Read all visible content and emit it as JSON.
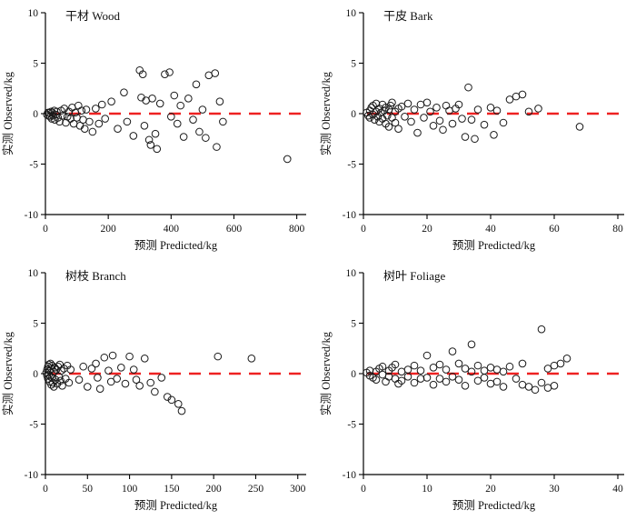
{
  "figure": {
    "description": "Residual scatter plots of observed minus predicted biomass for four tree components"
  },
  "chart_data": [
    {
      "type": "scatter",
      "id": "wood",
      "title": "干材 Wood",
      "xlabel": "预测 Predicted/kg",
      "ylabel": "实测 Observed/kg",
      "xlim": [
        0,
        830
      ],
      "ylim": [
        -10,
        10
      ],
      "xticks": [
        0,
        200,
        400,
        600,
        800
      ],
      "yticks": [
        -10,
        -5,
        0,
        5,
        10
      ],
      "refline_y": 0,
      "refline_color": "#ee2222",
      "point_color": "#1a1a1a",
      "points": [
        [
          5,
          -0.1
        ],
        [
          8,
          0.1
        ],
        [
          10,
          -0.2
        ],
        [
          12,
          0.1
        ],
        [
          15,
          -0.3
        ],
        [
          18,
          0.2
        ],
        [
          20,
          -0.5
        ],
        [
          22,
          0.1
        ],
        [
          25,
          -0.2
        ],
        [
          28,
          0.3
        ],
        [
          30,
          -0.6
        ],
        [
          33,
          -0.1
        ],
        [
          36,
          0.2
        ],
        [
          40,
          -0.4
        ],
        [
          45,
          -0.8
        ],
        [
          50,
          0.3
        ],
        [
          55,
          -0.2
        ],
        [
          60,
          0.5
        ],
        [
          65,
          -0.9
        ],
        [
          70,
          -0.3
        ],
        [
          75,
          0.2
        ],
        [
          80,
          -0.5
        ],
        [
          85,
          0.6
        ],
        [
          90,
          -1.0
        ],
        [
          95,
          0.1
        ],
        [
          100,
          -0.4
        ],
        [
          105,
          0.8
        ],
        [
          110,
          -1.2
        ],
        [
          115,
          0.3
        ],
        [
          120,
          -0.6
        ],
        [
          125,
          -1.5
        ],
        [
          130,
          0.4
        ],
        [
          140,
          -0.8
        ],
        [
          150,
          -1.8
        ],
        [
          160,
          0.5
        ],
        [
          170,
          -1.0
        ],
        [
          180,
          0.9
        ],
        [
          190,
          -0.5
        ],
        [
          210,
          1.2
        ],
        [
          230,
          -1.5
        ],
        [
          250,
          2.1
        ],
        [
          260,
          -0.8
        ],
        [
          280,
          -2.2
        ],
        [
          300,
          4.3
        ],
        [
          310,
          3.9
        ],
        [
          305,
          1.6
        ],
        [
          320,
          1.3
        ],
        [
          315,
          -1.2
        ],
        [
          330,
          -2.6
        ],
        [
          335,
          -3.1
        ],
        [
          340,
          1.5
        ],
        [
          350,
          -2.0
        ],
        [
          355,
          -3.5
        ],
        [
          365,
          1.0
        ],
        [
          380,
          3.9
        ],
        [
          395,
          4.1
        ],
        [
          400,
          -0.3
        ],
        [
          410,
          1.8
        ],
        [
          420,
          -1.0
        ],
        [
          430,
          0.8
        ],
        [
          440,
          -2.3
        ],
        [
          455,
          1.5
        ],
        [
          470,
          -0.6
        ],
        [
          480,
          2.9
        ],
        [
          490,
          -1.8
        ],
        [
          500,
          0.4
        ],
        [
          510,
          -2.4
        ],
        [
          520,
          3.8
        ],
        [
          540,
          4.0
        ],
        [
          545,
          -3.3
        ],
        [
          555,
          1.2
        ],
        [
          565,
          -0.8
        ],
        [
          770,
          -4.5
        ]
      ]
    },
    {
      "type": "scatter",
      "id": "bark",
      "title": "干皮 Bark",
      "xlabel": "预测 Predicted/kg",
      "ylabel": "实测 Observed/kg",
      "xlim": [
        0,
        82
      ],
      "ylim": [
        -10,
        10
      ],
      "xticks": [
        0,
        20,
        40,
        60,
        80
      ],
      "yticks": [
        -10,
        -5,
        0,
        5,
        10
      ],
      "refline_y": 0,
      "refline_color": "#ee2222",
      "point_color": "#1a1a1a",
      "points": [
        [
          1,
          0.1
        ],
        [
          1.5,
          -0.2
        ],
        [
          2,
          0.3
        ],
        [
          2,
          -0.4
        ],
        [
          2.5,
          0.6
        ],
        [
          3,
          -0.1
        ],
        [
          3,
          0.8
        ],
        [
          3.5,
          -0.6
        ],
        [
          4,
          0.2
        ],
        [
          4,
          1.0
        ],
        [
          4.5,
          -0.3
        ],
        [
          5,
          0.5
        ],
        [
          5,
          -0.8
        ],
        [
          5.5,
          0.1
        ],
        [
          6,
          0.9
        ],
        [
          6,
          -0.5
        ],
        [
          6.5,
          0.3
        ],
        [
          7,
          -1.0
        ],
        [
          7,
          0.6
        ],
        [
          7.5,
          -0.2
        ],
        [
          8,
          0.4
        ],
        [
          8,
          -1.3
        ],
        [
          8.5,
          0.8
        ],
        [
          9,
          -0.4
        ],
        [
          9,
          1.1
        ],
        [
          10,
          0.2
        ],
        [
          10,
          -0.9
        ],
        [
          11,
          0.5
        ],
        [
          11,
          -1.5
        ],
        [
          12,
          0.7
        ],
        [
          13,
          -0.3
        ],
        [
          14,
          1.0
        ],
        [
          15,
          -0.8
        ],
        [
          16,
          0.4
        ],
        [
          17,
          -1.9
        ],
        [
          18,
          0.9
        ],
        [
          19,
          -0.4
        ],
        [
          20,
          1.1
        ],
        [
          21,
          0.2
        ],
        [
          22,
          -1.2
        ],
        [
          23,
          0.6
        ],
        [
          24,
          -0.7
        ],
        [
          25,
          -1.6
        ],
        [
          26,
          0.8
        ],
        [
          27,
          0.3
        ],
        [
          28,
          -1.0
        ],
        [
          29,
          0.5
        ],
        [
          30,
          0.9
        ],
        [
          31,
          -0.5
        ],
        [
          32,
          -2.3
        ],
        [
          33,
          2.6
        ],
        [
          34,
          -0.6
        ],
        [
          35,
          -2.5
        ],
        [
          36,
          0.4
        ],
        [
          38,
          -1.1
        ],
        [
          40,
          0.6
        ],
        [
          41,
          -2.1
        ],
        [
          42,
          0.3
        ],
        [
          44,
          -0.9
        ],
        [
          46,
          1.4
        ],
        [
          48,
          1.7
        ],
        [
          50,
          1.9
        ],
        [
          52,
          0.2
        ],
        [
          55,
          0.5
        ],
        [
          68,
          -1.3
        ]
      ]
    },
    {
      "type": "scatter",
      "id": "branch",
      "title": "树枝 Branch",
      "xlabel": "预测 Predicted/kg",
      "ylabel": "实测 Observed/kg",
      "xlim": [
        0,
        310
      ],
      "ylim": [
        -10,
        10
      ],
      "xticks": [
        0,
        50,
        100,
        150,
        200,
        250,
        300
      ],
      "yticks": [
        -10,
        -5,
        0,
        5,
        10
      ],
      "refline_y": 0,
      "refline_color": "#ee2222",
      "point_color": "#1a1a1a",
      "points": [
        [
          1,
          0.1
        ],
        [
          2,
          -0.2
        ],
        [
          2,
          0.4
        ],
        [
          3,
          -0.5
        ],
        [
          3,
          0.7
        ],
        [
          4,
          -0.1
        ],
        [
          4,
          0.9
        ],
        [
          5,
          -0.8
        ],
        [
          5,
          0.3
        ],
        [
          6,
          -0.3
        ],
        [
          6,
          1.0
        ],
        [
          7,
          -1.1
        ],
        [
          7,
          0.5
        ],
        [
          8,
          -0.4
        ],
        [
          8,
          0.8
        ],
        [
          9,
          -0.9
        ],
        [
          10,
          0.2
        ],
        [
          10,
          -1.3
        ],
        [
          11,
          0.6
        ],
        [
          12,
          -0.6
        ],
        [
          13,
          0.4
        ],
        [
          14,
          -1.0
        ],
        [
          15,
          0.7
        ],
        [
          16,
          -0.3
        ],
        [
          17,
          0.9
        ],
        [
          18,
          -0.7
        ],
        [
          19,
          0.3
        ],
        [
          20,
          -1.2
        ],
        [
          22,
          0.5
        ],
        [
          24,
          -0.5
        ],
        [
          26,
          0.8
        ],
        [
          28,
          -0.9
        ],
        [
          30,
          0.4
        ],
        [
          40,
          -0.6
        ],
        [
          45,
          0.7
        ],
        [
          50,
          -1.3
        ],
        [
          55,
          0.5
        ],
        [
          60,
          1.0
        ],
        [
          62,
          -0.4
        ],
        [
          65,
          -1.5
        ],
        [
          70,
          1.6
        ],
        [
          75,
          0.3
        ],
        [
          78,
          -0.8
        ],
        [
          80,
          1.8
        ],
        [
          85,
          -0.5
        ],
        [
          90,
          0.6
        ],
        [
          95,
          -1.0
        ],
        [
          100,
          1.7
        ],
        [
          105,
          0.4
        ],
        [
          108,
          -0.6
        ],
        [
          112,
          -1.2
        ],
        [
          118,
          1.5
        ],
        [
          125,
          -0.9
        ],
        [
          130,
          -1.8
        ],
        [
          138,
          -0.4
        ],
        [
          145,
          -2.3
        ],
        [
          150,
          -2.6
        ],
        [
          158,
          -3.0
        ],
        [
          162,
          -3.7
        ],
        [
          205,
          1.7
        ],
        [
          245,
          1.5
        ]
      ]
    },
    {
      "type": "scatter",
      "id": "foliage",
      "title": "树叶 Foliage",
      "xlabel": "预测 Predicted/kg",
      "ylabel": "实测 Observed/kg",
      "xlim": [
        0,
        41
      ],
      "ylim": [
        -10,
        10
      ],
      "xticks": [
        0,
        10,
        20,
        30,
        40
      ],
      "yticks": [
        -10,
        -5,
        0,
        5,
        10
      ],
      "refline_y": 0,
      "refline_color": "#ee2222",
      "point_color": "#1a1a1a",
      "points": [
        [
          0.5,
          0.1
        ],
        [
          1,
          -0.2
        ],
        [
          1,
          0.3
        ],
        [
          1.5,
          -0.4
        ],
        [
          2,
          0.2
        ],
        [
          2,
          -0.6
        ],
        [
          2.5,
          0.5
        ],
        [
          3,
          -0.1
        ],
        [
          3,
          0.7
        ],
        [
          3.5,
          -0.8
        ],
        [
          4,
          0.3
        ],
        [
          4,
          -0.3
        ],
        [
          4.5,
          0.6
        ],
        [
          5,
          -0.5
        ],
        [
          5,
          0.9
        ],
        [
          5.5,
          -1.0
        ],
        [
          6,
          0.2
        ],
        [
          6,
          -0.7
        ],
        [
          7,
          0.4
        ],
        [
          7,
          -0.3
        ],
        [
          8,
          0.8
        ],
        [
          8,
          -0.9
        ],
        [
          9,
          0.3
        ],
        [
          9,
          -0.5
        ],
        [
          10,
          1.8
        ],
        [
          10,
          -0.4
        ],
        [
          11,
          0.6
        ],
        [
          11,
          -1.1
        ],
        [
          12,
          -0.5
        ],
        [
          12,
          0.9
        ],
        [
          13,
          0.4
        ],
        [
          13,
          -0.8
        ],
        [
          14,
          2.2
        ],
        [
          14,
          -0.3
        ],
        [
          15,
          1.0
        ],
        [
          15,
          -0.6
        ],
        [
          16,
          0.5
        ],
        [
          16,
          -1.2
        ],
        [
          17,
          2.9
        ],
        [
          17,
          0.2
        ],
        [
          18,
          -0.7
        ],
        [
          18,
          0.8
        ],
        [
          19,
          -0.4
        ],
        [
          19,
          0.3
        ],
        [
          20,
          0.6
        ],
        [
          20,
          -1.0
        ],
        [
          21,
          -0.8
        ],
        [
          21,
          0.4
        ],
        [
          22,
          0.2
        ],
        [
          22,
          -1.3
        ],
        [
          23,
          0.7
        ],
        [
          24,
          -0.5
        ],
        [
          25,
          1.0
        ],
        [
          25,
          -1.1
        ],
        [
          26,
          -1.3
        ],
        [
          27,
          -1.6
        ],
        [
          28,
          4.4
        ],
        [
          28,
          -0.9
        ],
        [
          29,
          -1.4
        ],
        [
          29,
          0.5
        ],
        [
          30,
          -1.2
        ],
        [
          30,
          0.8
        ],
        [
          31,
          1.0
        ],
        [
          32,
          1.5
        ]
      ]
    }
  ]
}
